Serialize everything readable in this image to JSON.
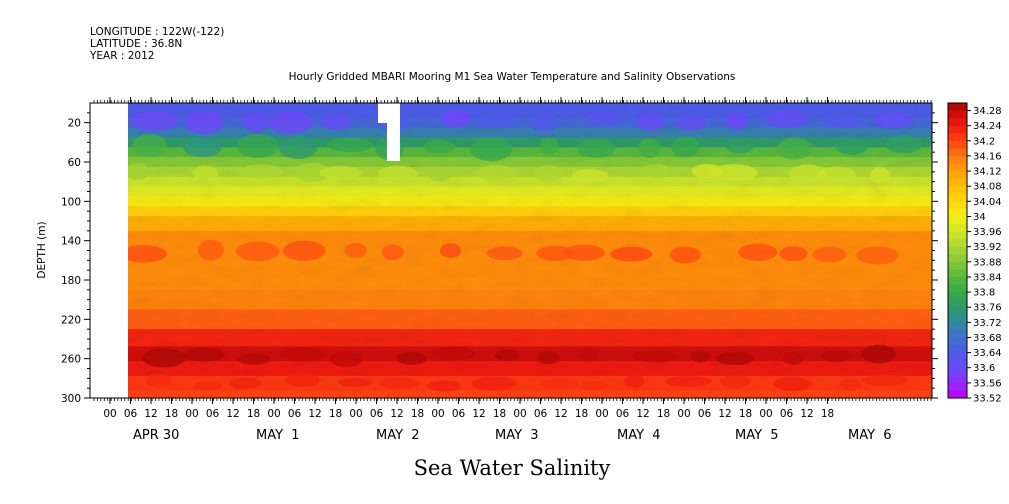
{
  "header": {
    "longitude": "LONGITUDE : 122W(-122)",
    "latitude": "LATITUDE : 36.8N",
    "year": "YEAR : 2012"
  },
  "chart_data": {
    "type": "heatmap",
    "title": "Hourly Gridded MBARI Mooring M1 Sea Water Temperature and Salinity Observations",
    "xlabel": "Sea Water Salinity",
    "ylabel": "DEPTH (m)",
    "ylim": [
      300,
      0
    ],
    "y_ticks": [
      20,
      60,
      100,
      140,
      180,
      220,
      260,
      300
    ],
    "x_hour_ticks": [
      "00",
      "06",
      "12",
      "18",
      "00",
      "06",
      "12",
      "18",
      "00",
      "06",
      "12",
      "18",
      "00",
      "06",
      "12",
      "18",
      "00",
      "06",
      "12",
      "18",
      "00",
      "06",
      "12",
      "18",
      "00",
      "06",
      "12",
      "18",
      "00",
      "06",
      "12",
      "18",
      "00",
      "06",
      "12",
      "18"
    ],
    "x_date_labels": [
      "APR 30",
      "MAY  1",
      "MAY  2",
      "MAY  3",
      "MAY  4",
      "MAY  5",
      "MAY  6"
    ],
    "colorbar": {
      "labels": [
        "34.28",
        "34.24",
        "34.2",
        "34.16",
        "34.12",
        "34.08",
        "34.04",
        "34",
        "33.96",
        "33.92",
        "33.88",
        "33.84",
        "33.8",
        "33.76",
        "33.72",
        "33.68",
        "33.64",
        "33.6",
        "33.56",
        "33.52"
      ],
      "range": [
        33.52,
        34.3
      ],
      "step": 0.02
    },
    "depth_profile": [
      {
        "depth": 10,
        "value": 33.64
      },
      {
        "depth": 20,
        "value": 33.66
      },
      {
        "depth": 30,
        "value": 33.7
      },
      {
        "depth": 40,
        "value": 33.76
      },
      {
        "depth": 50,
        "value": 33.84
      },
      {
        "depth": 60,
        "value": 33.88
      },
      {
        "depth": 70,
        "value": 33.92
      },
      {
        "depth": 80,
        "value": 33.95
      },
      {
        "depth": 90,
        "value": 33.98
      },
      {
        "depth": 100,
        "value": 34.01
      },
      {
        "depth": 110,
        "value": 34.05
      },
      {
        "depth": 120,
        "value": 34.1
      },
      {
        "depth": 140,
        "value": 34.14
      },
      {
        "depth": 160,
        "value": 34.14
      },
      {
        "depth": 180,
        "value": 34.14
      },
      {
        "depth": 200,
        "value": 34.15
      },
      {
        "depth": 220,
        "value": 34.18
      },
      {
        "depth": 240,
        "value": 34.23
      },
      {
        "depth": 255,
        "value": 34.27
      },
      {
        "depth": 270,
        "value": 34.24
      },
      {
        "depth": 285,
        "value": 34.21
      },
      {
        "depth": 300,
        "value": 34.2
      }
    ],
    "grid": false,
    "legend_position": "right"
  }
}
